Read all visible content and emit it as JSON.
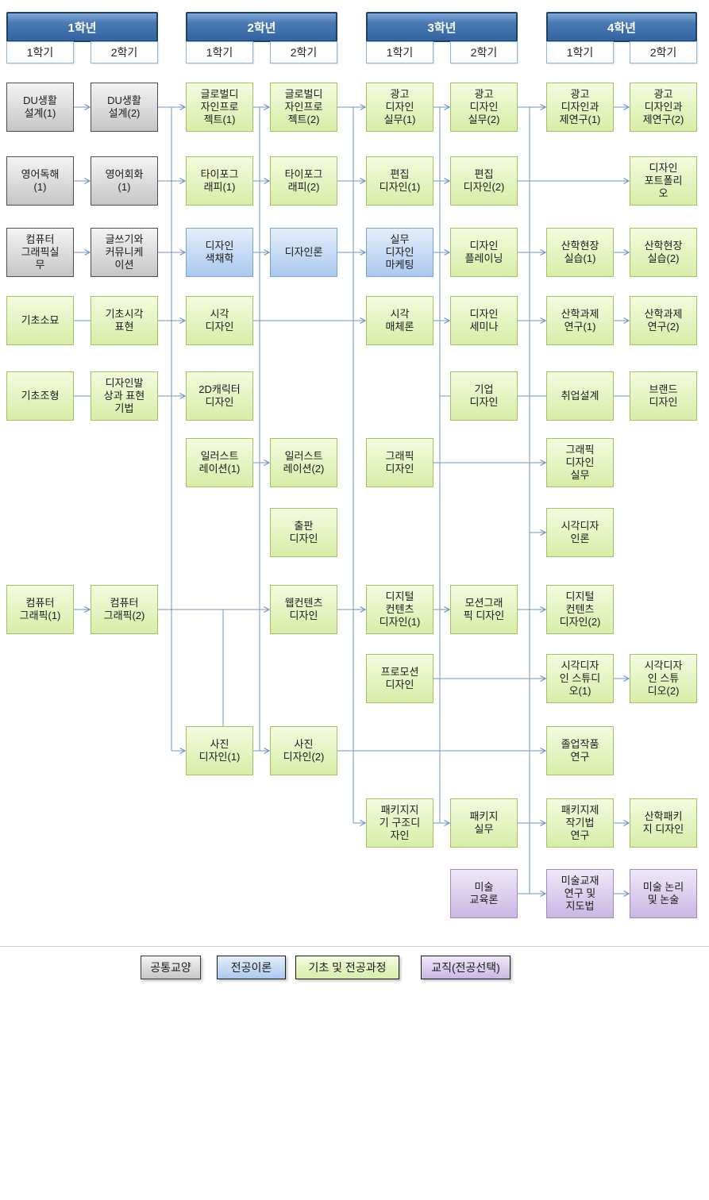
{
  "header": {
    "years": [
      {
        "label": "1학년",
        "semesters": [
          "1학기",
          "2학기"
        ]
      },
      {
        "label": "2학년",
        "semesters": [
          "1학기",
          "2학기"
        ]
      },
      {
        "label": "3학년",
        "semesters": [
          "1학기",
          "2학기"
        ]
      },
      {
        "label": "4학년",
        "semesters": [
          "1학기",
          "2학기"
        ]
      }
    ]
  },
  "colors": {
    "general_top": "#f4f4f4",
    "general_bottom": "#c6c6c6",
    "general_border": "#4d4d4d",
    "theory_top": "#e4eefa",
    "theory_bottom": "#aac9ef",
    "theory_border": "#7ba3d0",
    "major_top": "#f4fbdf",
    "major_bottom": "#d7eda8",
    "major_border": "#a2c35e",
    "teaching_top": "#efe8f8",
    "teaching_bottom": "#cbb6e4",
    "teaching_border": "#9e88bf",
    "year_header_blue": "#31659f",
    "line": "#6e96c4"
  },
  "courses": [
    {
      "row": 1,
      "col": 1,
      "category": "general",
      "label": "DU생활\n설계(1)"
    },
    {
      "row": 1,
      "col": 2,
      "category": "general",
      "label": "DU생활\n설계(2)"
    },
    {
      "row": 1,
      "col": 3,
      "category": "major",
      "label": "글로벌디\n자인프로\n젝트(1)"
    },
    {
      "row": 1,
      "col": 4,
      "category": "major",
      "label": "글로벌디\n자인프로\n젝트(2)"
    },
    {
      "row": 1,
      "col": 5,
      "category": "major",
      "label": "광고\n디자인\n실무(1)"
    },
    {
      "row": 1,
      "col": 6,
      "category": "major",
      "label": "광고\n디자인\n실무(2)"
    },
    {
      "row": 1,
      "col": 7,
      "category": "major",
      "label": "광고\n디자인과\n제연구(1)"
    },
    {
      "row": 1,
      "col": 8,
      "category": "major",
      "label": "광고\n디자인과\n제연구(2)"
    },
    {
      "row": 2,
      "col": 1,
      "category": "general",
      "label": "영어독해\n(1)"
    },
    {
      "row": 2,
      "col": 2,
      "category": "general",
      "label": "영어회화\n(1)"
    },
    {
      "row": 2,
      "col": 3,
      "category": "major",
      "label": "타이포그\n래피(1)"
    },
    {
      "row": 2,
      "col": 4,
      "category": "major",
      "label": "타이포그\n래피(2)"
    },
    {
      "row": 2,
      "col": 5,
      "category": "major",
      "label": "편집\n디자인(1)"
    },
    {
      "row": 2,
      "col": 6,
      "category": "major",
      "label": "편집\n디자인(2)"
    },
    {
      "row": 2,
      "col": 8,
      "category": "major",
      "label": "디자인\n포트폴리\n오"
    },
    {
      "row": 3,
      "col": 1,
      "category": "general",
      "label": "컴퓨터\n그래픽실\n무"
    },
    {
      "row": 3,
      "col": 2,
      "category": "general",
      "label": "글쓰기와\n커뮤니케\n이션"
    },
    {
      "row": 3,
      "col": 3,
      "category": "theory",
      "label": "디자인\n색채학"
    },
    {
      "row": 3,
      "col": 4,
      "category": "theory",
      "label": "디자인론"
    },
    {
      "row": 3,
      "col": 5,
      "category": "theory",
      "label": "실무\n디자인\n마케팅"
    },
    {
      "row": 3,
      "col": 6,
      "category": "major",
      "label": "디자인\n플레이닝"
    },
    {
      "row": 3,
      "col": 7,
      "category": "major",
      "label": "산학현장\n실습(1)"
    },
    {
      "row": 3,
      "col": 8,
      "category": "major",
      "label": "산학현장\n실습(2)"
    },
    {
      "row": 4,
      "col": 1,
      "category": "major",
      "label": "기초소묘"
    },
    {
      "row": 4,
      "col": 2,
      "category": "major",
      "label": "기초시각\n표현"
    },
    {
      "row": 4,
      "col": 3,
      "category": "major",
      "label": "시각\n디자인"
    },
    {
      "row": 4,
      "col": 5,
      "category": "major",
      "label": "시각\n매체론"
    },
    {
      "row": 4,
      "col": 6,
      "category": "major",
      "label": "디자인\n세미나"
    },
    {
      "row": 4,
      "col": 7,
      "category": "major",
      "label": "산학과제\n연구(1)"
    },
    {
      "row": 4,
      "col": 8,
      "category": "major",
      "label": "산학과제\n연구(2)"
    },
    {
      "row": 5,
      "col": 1,
      "category": "major",
      "label": "기초조형"
    },
    {
      "row": 5,
      "col": 2,
      "category": "major",
      "label": "디자인발\n상과 표현\n기법"
    },
    {
      "row": 5,
      "col": 3,
      "category": "major",
      "label": "2D캐릭터\n디자인"
    },
    {
      "row": 5,
      "col": 6,
      "category": "major",
      "label": "기업\n디자인"
    },
    {
      "row": 5,
      "col": 7,
      "category": "major",
      "label": "취업설계"
    },
    {
      "row": 5,
      "col": 8,
      "category": "major",
      "label": "브랜드\n디자인"
    },
    {
      "row": 6,
      "col": 3,
      "category": "major",
      "label": "일러스트\n레이션(1)"
    },
    {
      "row": 6,
      "col": 4,
      "category": "major",
      "label": "일러스트\n레이션(2)"
    },
    {
      "row": 6,
      "col": 5,
      "category": "major",
      "label": "그래픽\n디자인"
    },
    {
      "row": 6,
      "col": 7,
      "category": "major",
      "label": "그래픽\n디자인\n실무"
    },
    {
      "row": 7,
      "col": 4,
      "category": "major",
      "label": "출판\n디자인"
    },
    {
      "row": 7,
      "col": 7,
      "category": "major",
      "label": "시각디자\n인론"
    },
    {
      "row": 8,
      "col": 1,
      "category": "major",
      "label": "컴퓨터\n그래픽(1)"
    },
    {
      "row": 8,
      "col": 2,
      "category": "major",
      "label": "컴퓨터\n그래픽(2)"
    },
    {
      "row": 8,
      "col": 4,
      "category": "major",
      "label": "웹컨텐츠\n디자인"
    },
    {
      "row": 8,
      "col": 5,
      "category": "major",
      "label": "디지털\n컨텐츠\n디자인(1)"
    },
    {
      "row": 8,
      "col": 6,
      "category": "major",
      "label": "모션그래\n픽 디자인"
    },
    {
      "row": 8,
      "col": 7,
      "category": "major",
      "label": "디지털\n컨텐츠\n디자인(2)"
    },
    {
      "row": 9,
      "col": 5,
      "category": "major",
      "label": "프로모션\n디자인"
    },
    {
      "row": 9,
      "col": 7,
      "category": "major",
      "label": "시각디자\n인 스튜디\n오(1)"
    },
    {
      "row": 9,
      "col": 8,
      "category": "major",
      "label": "시각디자\n인 스튜\n디오(2)"
    },
    {
      "row": 10,
      "col": 3,
      "category": "major",
      "label": "사진\n디자인(1)"
    },
    {
      "row": 10,
      "col": 4,
      "category": "major",
      "label": "사진\n디자인(2)"
    },
    {
      "row": 10,
      "col": 7,
      "category": "major",
      "label": "졸업작품\n연구"
    },
    {
      "row": 11,
      "col": 5,
      "category": "major",
      "label": "패키지지\n기 구조디\n자인"
    },
    {
      "row": 11,
      "col": 6,
      "category": "major",
      "label": "패키지\n실무"
    },
    {
      "row": 11,
      "col": 7,
      "category": "major",
      "label": "패키지제\n작기법\n연구"
    },
    {
      "row": 11,
      "col": 8,
      "category": "major",
      "label": "산학패키\n지 디자인"
    },
    {
      "row": 12,
      "col": 6,
      "category": "teaching",
      "label": "미술\n교육론"
    },
    {
      "row": 12,
      "col": 7,
      "category": "teaching",
      "label": "미술교재\n연구 및\n지도법"
    },
    {
      "row": 12,
      "col": 8,
      "category": "teaching",
      "label": "미술 논리\n및 논술"
    }
  ],
  "links": [
    {
      "row": 1,
      "from": 1,
      "to": 2,
      "arrow": true
    },
    {
      "row": 1,
      "from": 2,
      "to": 3,
      "arrow": true
    },
    {
      "row": 1,
      "from": 3,
      "to": 4,
      "arrow": true
    },
    {
      "row": 1,
      "from": 4,
      "to": 5,
      "arrow": true
    },
    {
      "row": 1,
      "from": 5,
      "to": 6,
      "arrow": true
    },
    {
      "row": 1,
      "from": 6,
      "to": 7,
      "arrow": true
    },
    {
      "row": 1,
      "from": 7,
      "to": 8,
      "arrow": true
    },
    {
      "row": 2,
      "from": 1,
      "to": 2,
      "arrow": true
    },
    {
      "row": 2,
      "from": 2,
      "to": 3,
      "arrow": true
    },
    {
      "row": 2,
      "from": 3,
      "to": 4,
      "arrow": true
    },
    {
      "row": 2,
      "from": 4,
      "to": 5,
      "arrow": true
    },
    {
      "row": 2,
      "from": 5,
      "to": 6,
      "arrow": true
    },
    {
      "row": 2,
      "from": 6,
      "to": 8,
      "arrow": true
    },
    {
      "row": 3,
      "from": 1,
      "to": 2,
      "arrow": true
    },
    {
      "row": 3,
      "from": 2,
      "to": 3,
      "arrow": true
    },
    {
      "row": 3,
      "from": 3,
      "to": 4,
      "arrow": true
    },
    {
      "row": 3,
      "from": 4,
      "to": 5,
      "arrow": true
    },
    {
      "row": 3,
      "from": 5,
      "to": 6,
      "arrow": true
    },
    {
      "row": 3,
      "from": 6,
      "to": 7,
      "arrow": true
    },
    {
      "row": 3,
      "from": 7,
      "to": 8,
      "arrow": true
    },
    {
      "row": 4,
      "from": 1,
      "to": 2,
      "arrow": false
    },
    {
      "row": 4,
      "from": 2,
      "to": 3,
      "arrow": true
    },
    {
      "row": 4,
      "from": 3,
      "to": 5,
      "arrow": true
    },
    {
      "row": 4,
      "from": 5,
      "to": 6,
      "arrow": true
    },
    {
      "row": 4,
      "from": 6,
      "to": 7,
      "arrow": true
    },
    {
      "row": 4,
      "from": 7,
      "to": 8,
      "arrow": true
    },
    {
      "row": 5,
      "from": 1,
      "to": 2,
      "arrow": false
    },
    {
      "row": 5,
      "from": 2,
      "to": 3,
      "arrow": true
    },
    {
      "row": 5,
      "from": "t4",
      "to": 6,
      "arrow": false
    },
    {
      "row": 5,
      "from": 6,
      "to": 7,
      "arrow": false
    },
    {
      "row": 5,
      "from": 7,
      "to": 8,
      "arrow": false
    },
    {
      "row": 6,
      "from": 3,
      "to": 4,
      "arrow": true
    },
    {
      "row": 6,
      "from": 5,
      "to": 7,
      "arrow": true
    },
    {
      "row": 7,
      "from": "t5",
      "to": 7,
      "arrow": true
    },
    {
      "row": 8,
      "from": 1,
      "to": 2,
      "arrow": true
    },
    {
      "row": 8,
      "from": 2,
      "to": 4,
      "arrow": true
    },
    {
      "row": 8,
      "from": 4,
      "to": 5,
      "arrow": true
    },
    {
      "row": 8,
      "from": 5,
      "to": 6,
      "arrow": true
    },
    {
      "row": 8,
      "from": 6,
      "to": 7,
      "arrow": true
    },
    {
      "row": 9,
      "from": 5,
      "to": 7,
      "arrow": true
    },
    {
      "row": 9,
      "from": 7,
      "to": 8,
      "arrow": true
    },
    {
      "row": 10,
      "from": "t1",
      "to": 3,
      "arrow": true
    },
    {
      "row": 10,
      "from": 3,
      "to": 4,
      "arrow": true
    },
    {
      "row": 10,
      "from": 4,
      "to": 7,
      "arrow": true
    },
    {
      "row": 11,
      "from": "t3",
      "to": 5,
      "arrow": true
    },
    {
      "row": 11,
      "from": 5,
      "to": 6,
      "arrow": true
    },
    {
      "row": 11,
      "from": 6,
      "to": 7,
      "arrow": true
    },
    {
      "row": 11,
      "from": 7,
      "to": 8,
      "arrow": true
    },
    {
      "row": 12,
      "from": 6,
      "to": 7,
      "arrow": true
    },
    {
      "row": 12,
      "from": 7,
      "to": 8,
      "arrow": true
    }
  ],
  "legend": [
    {
      "label": "공통교양",
      "category": "general"
    },
    {
      "label": "전공이론",
      "category": "theory"
    },
    {
      "label": "기초 및 전공과정",
      "category": "major"
    },
    {
      "label": "교직(전공선택)",
      "category": "teaching"
    }
  ]
}
